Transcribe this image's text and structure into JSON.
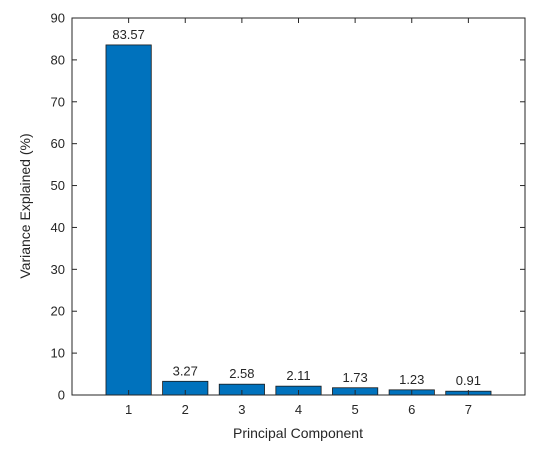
{
  "chart_data": {
    "type": "bar",
    "x": [
      1,
      2,
      3,
      4,
      5,
      6,
      7
    ],
    "values": [
      83.57,
      3.27,
      2.58,
      2.11,
      1.73,
      1.23,
      0.91
    ],
    "color": "#0072bd",
    "xlabel": "Principal Component",
    "ylabel": "Variance Explained (%)",
    "xlim": [
      0,
      8
    ],
    "xticks": [
      1,
      2,
      3,
      4,
      5,
      6,
      7
    ],
    "ylim": [
      0,
      90
    ],
    "yticks": [
      0,
      10,
      20,
      30,
      40,
      50,
      60,
      70,
      80,
      90
    ],
    "grid": false
  }
}
